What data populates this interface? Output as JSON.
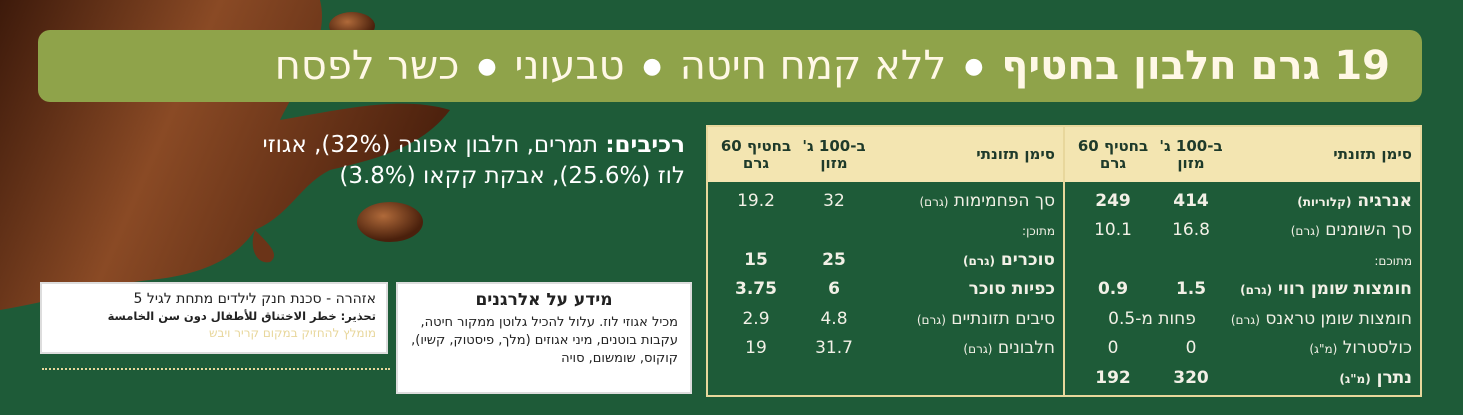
{
  "banner": {
    "claims": [
      "19 גרם חלבון בחטיף",
      "ללא קמח חיטה",
      "טבעוני",
      "כשר לפסח"
    ]
  },
  "ingredients": {
    "label": "רכיבים:",
    "text": "תמרים, חלבון אפונה (32%), אגוזי לוז (25.6%), אבקת קקאו (3.8%)"
  },
  "nutrition": {
    "header": {
      "name": "סימן תזונתי",
      "per100": "ב-100 ג' מזון",
      "perBar": "בחטיף 60 גרם"
    },
    "right_rows": [
      {
        "name": "אנרגיה",
        "unit": "(קלוריות)",
        "per100": "414",
        "perBar": "249",
        "bold": true
      },
      {
        "name": "סך השומנים",
        "unit": "(גרם)",
        "per100": "16.8",
        "perBar": "10.1",
        "bold": false
      },
      {
        "name": "מתוכם:",
        "unit": "",
        "per100": "",
        "perBar": "",
        "bold": false,
        "sub": true
      },
      {
        "name": "חומצות שומן רווי",
        "unit": "(גרם)",
        "per100": "1.5",
        "perBar": "0.9",
        "bold": true
      },
      {
        "name": "חומצות שומן טראנס",
        "unit": "(גרם)",
        "per100": "פחות מ-0.5",
        "perBar": "",
        "bold": false,
        "span": true
      },
      {
        "name": "כולסטרול",
        "unit": "(מ\"ג)",
        "per100": "0",
        "perBar": "0",
        "bold": false
      },
      {
        "name": "נתרן",
        "unit": "(מ\"ג)",
        "per100": "320",
        "perBar": "192",
        "bold": true
      }
    ],
    "left_rows": [
      {
        "name": "סך הפחמימות",
        "unit": "(גרם)",
        "per100": "32",
        "perBar": "19.2",
        "bold": false
      },
      {
        "name": "מתוכן:",
        "unit": "",
        "per100": "",
        "perBar": "",
        "bold": false,
        "sub": true
      },
      {
        "name": "סוכרים",
        "unit": "(גרם)",
        "per100": "25",
        "perBar": "15",
        "bold": true
      },
      {
        "name": "כפיות סוכר",
        "unit": "",
        "per100": "6",
        "perBar": "3.75",
        "bold": true
      },
      {
        "name": "סיבים תזונתיים",
        "unit": "(גרם)",
        "per100": "4.8",
        "perBar": "2.9",
        "bold": false
      },
      {
        "name": "חלבונים",
        "unit": "(גרם)",
        "per100": "31.7",
        "perBar": "19",
        "bold": false
      }
    ]
  },
  "allergens": {
    "title": "מידע על אלרגנים",
    "text": "מכיל אגוזי לוז. עלול להכיל גלוטן ממקור חיטה, עקבות בוטנים, מיני אגוזים (מלך, פיסטוק, קשיו), קוקוס, שומשום, סויה"
  },
  "warning": {
    "hebrew": "אזהרה - סכנת חנק לילדים מתחת לגיל 5",
    "arabic": "تحذير: خطر الاختناق للأطفال دون سن الخامسة",
    "hebrew2": "מומלץ להחזיק במקום קריר ויבש"
  },
  "colors": {
    "background": "#1e5b38",
    "banner": "#8fa34a",
    "header": "#f3e5b1",
    "chocolate": "#6b3418"
  }
}
